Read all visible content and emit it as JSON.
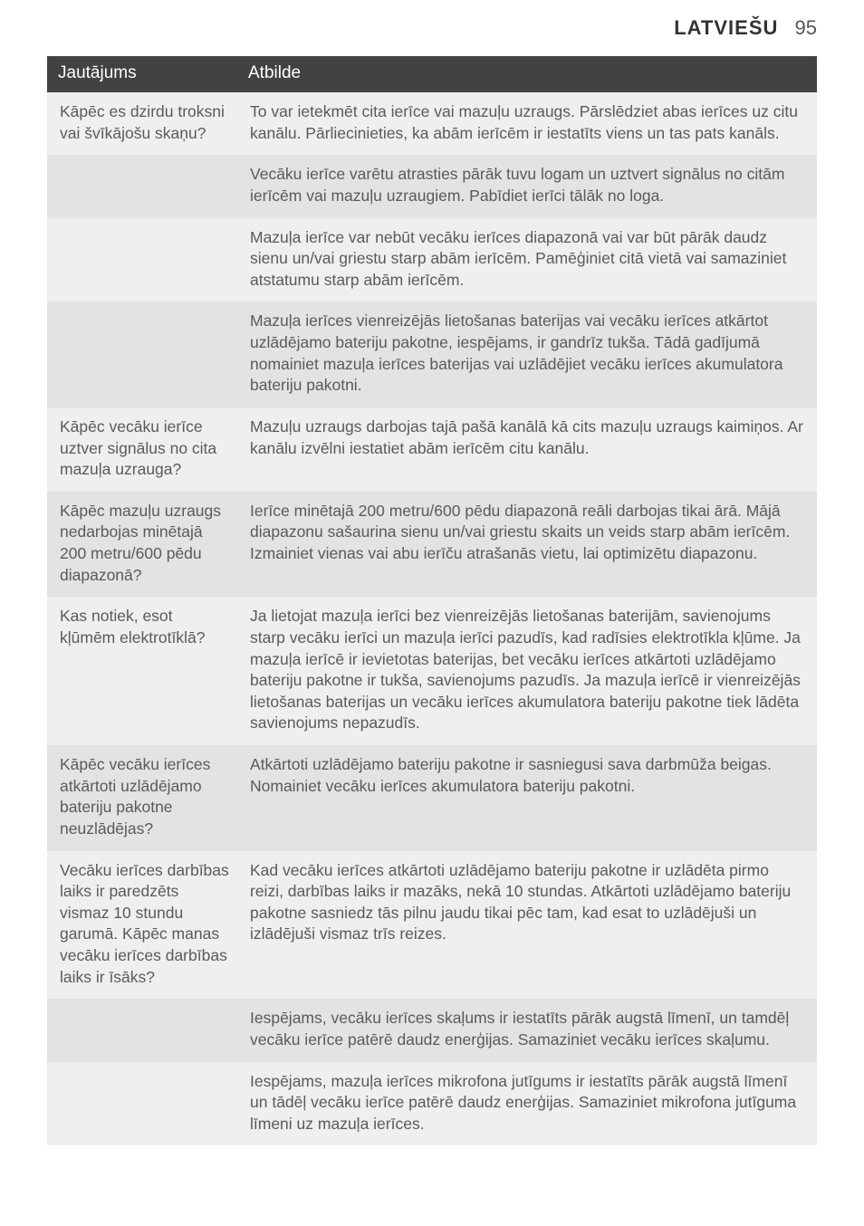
{
  "header": {
    "language": "LATVIEŠU",
    "page_number": "95"
  },
  "table": {
    "columns": {
      "question": "Jautājums",
      "answer": "Atbilde"
    },
    "rows": [
      {
        "stripe": false,
        "q": "Kāpēc es dzirdu troksni vai švīkājošu skaņu?",
        "a": "To var ietekmēt cita ierīce vai mazuļu uzraugs. Pārslēdziet abas ierīces uz citu kanālu. Pārliecinieties, ka abām ierīcēm ir iestatīts viens un tas pats kanāls."
      },
      {
        "stripe": true,
        "q": "",
        "a": "Vecāku ierīce varētu atrasties pārāk tuvu logam un uztvert signālus no citām ierīcēm vai mazuļu uzraugiem. Pabīdiet ierīci tālāk no loga."
      },
      {
        "stripe": false,
        "q": "",
        "a": "Mazuļa ierīce var nebūt vecāku ierīces diapazonā vai var būt pārāk daudz sienu un/vai griestu starp abām ierīcēm. Pamēģiniet citā vietā vai samaziniet atstatumu starp abām ierīcēm."
      },
      {
        "stripe": true,
        "q": "",
        "a": "Mazuļa ierīces vienreizējās lietošanas baterijas vai vecāku ierīces atkārtot uzlādējamo bateriju pakotne, iespējams, ir gandrīz tukša. Tādā gadījumā nomainiet mazuļa ierīces baterijas vai uzlādējiet vecāku ierīces akumulatora bateriju pakotni."
      },
      {
        "stripe": false,
        "q": "Kāpēc vecāku ierīce uztver signālus no cita mazuļa uzrauga?",
        "a": "Mazuļu uzraugs darbojas tajā pašā kanālā kā cits mazuļu uzraugs kaimiņos. Ar kanālu izvēlni iestatiet abām ierīcēm citu kanālu."
      },
      {
        "stripe": true,
        "q": "Kāpēc mazuļu uzraugs nedarbojas minētajā 200 metru/600 pēdu diapazonā?",
        "a": "Ierīce minētajā 200 metru/600 pēdu diapazonā reāli darbojas tikai ārā. Mājā diapazonu sašaurina sienu un/vai griestu skaits un veids starp abām ierīcēm. Izmainiet vienas vai abu ierīču atrašanās vietu, lai optimizētu diapazonu."
      },
      {
        "stripe": false,
        "q": "Kas notiek, esot kļūmēm elektrotīklā?",
        "a": "Ja lietojat mazuļa ierīci bez vienreizējās lietošanas baterijām, savienojums starp vecāku ierīci un mazuļa ierīci pazudīs, kad radīsies elektrotīkla kļūme. Ja mazuļa ierīcē ir ievietotas baterijas, bet vecāku ierīces atkārtoti uzlādējamo bateriju pakotne ir tukša, savienojums pazudīs. Ja mazuļa ierīcē ir vienreizējās lietošanas baterijas un vecāku ierīces akumulatora bateriju pakotne tiek lādēta savienojums nepazudīs."
      },
      {
        "stripe": true,
        "q": "Kāpēc vecāku ierīces atkārtoti uzlādējamo bateriju pakotne neuzlādējas?",
        "a": "Atkārtoti uzlādējamo bateriju pakotne ir sasniegusi sava darbmūža beigas. Nomainiet vecāku ierīces akumulatora bateriju pakotni."
      },
      {
        "stripe": false,
        "q": "Vecāku ierīces darbības laiks ir paredzēts vismaz 10 stundu garumā. Kāpēc manas vecāku ierīces darbības laiks ir īsāks?",
        "a": "Kad vecāku ierīces atkārtoti uzlādējamo bateriju pakotne ir uzlādēta pirmo reizi, darbības laiks ir mazāks, nekā 10 stundas. Atkārtoti uzlādējamo bateriju pakotne sasniedz tās pilnu jaudu tikai pēc tam, kad esat to uzlādējuši un izlādējuši vismaz trīs reizes."
      },
      {
        "stripe": true,
        "q": "",
        "a": "Iespējams, vecāku ierīces skaļums ir iestatīts pārāk augstā līmenī, un tamdēļ vecāku ierīce patērē daudz enerģijas. Samaziniet vecāku ierīces skaļumu."
      },
      {
        "stripe": false,
        "q": "",
        "a": "Iespējams, mazuļa ierīces mikrofona jutīgums ir iestatīts pārāk augstā līmenī un tādēļ vecāku ierīce patērē daudz enerģijas. Samaziniet mikrofona jutīguma līmeni uz mazuļa ierīces."
      }
    ]
  },
  "colors": {
    "page_bg": "#ffffff",
    "header_row_bg": "#424242",
    "header_row_text": "#ffffff",
    "row_bg": "#efefef",
    "row_stripe_bg": "#e3e3e3",
    "body_text": "#5a5a5a"
  }
}
